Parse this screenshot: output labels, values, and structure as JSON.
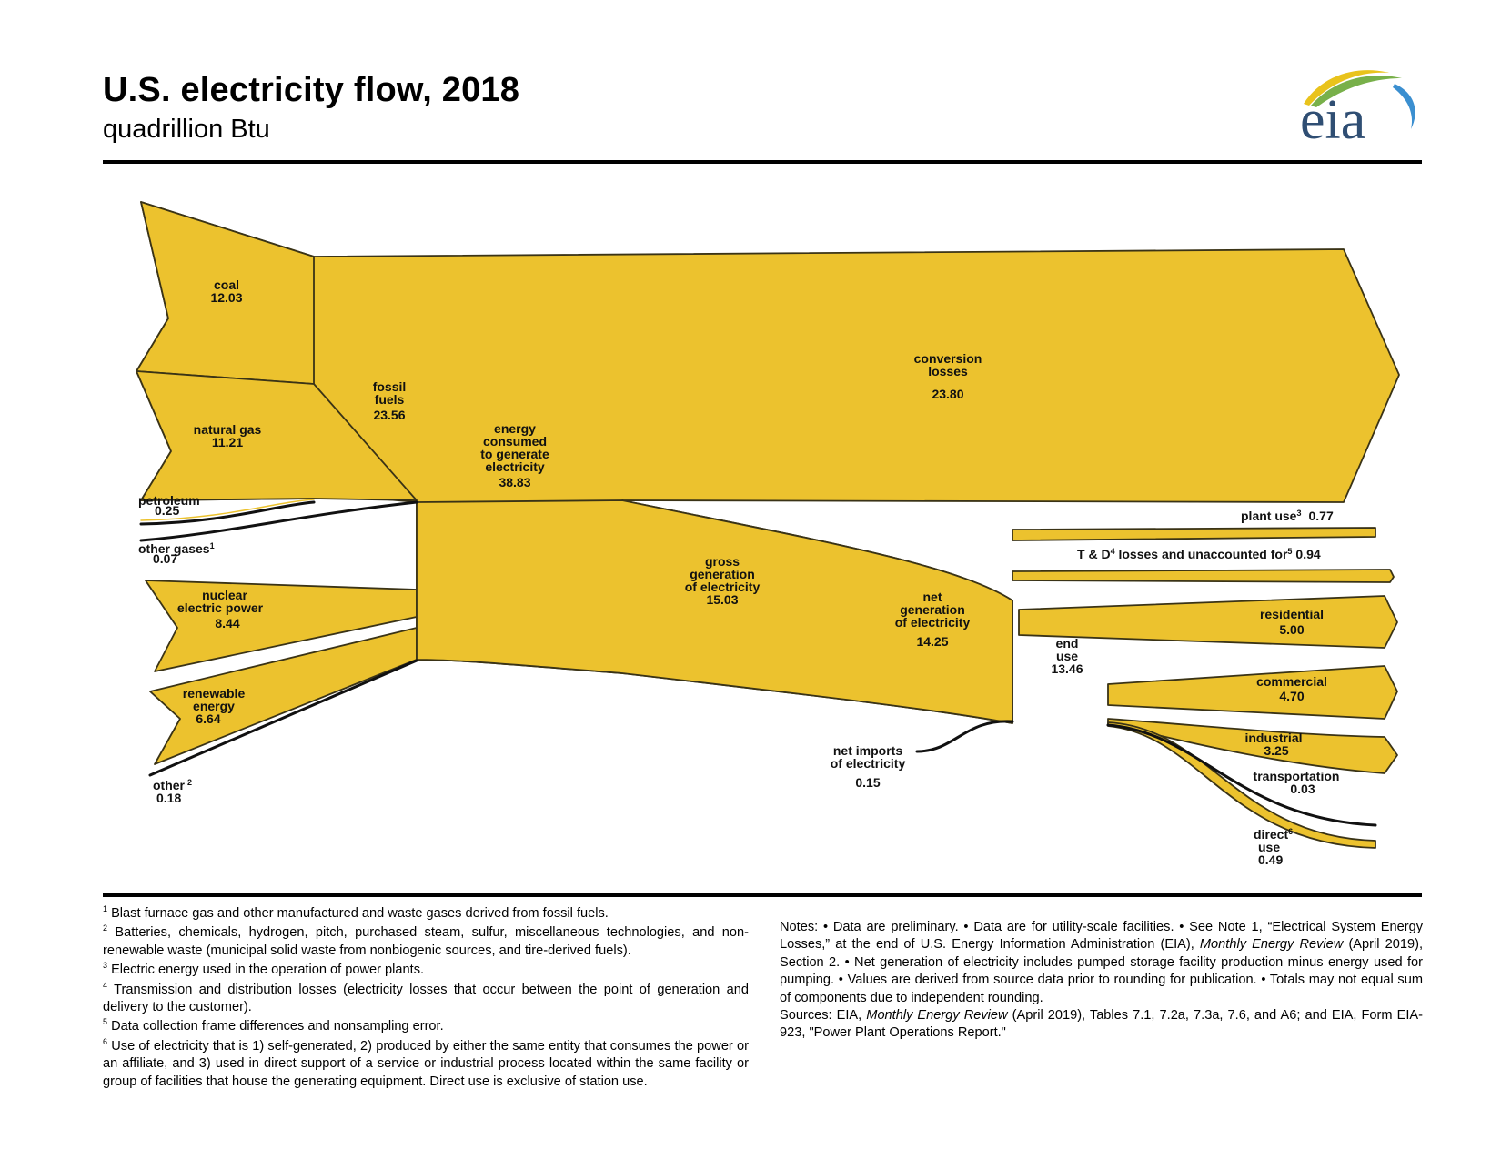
{
  "header": {
    "title": "U.S. electricity flow, 2018",
    "subtitle": "quadrillion Btu",
    "logo_text": "eia"
  },
  "colors": {
    "flow_fill": "#ECC22E",
    "flow_outline": "#3a3316",
    "text": "#111111",
    "logo_text": "#2f4e73",
    "logo_swoosh_green": "#78b04a",
    "logo_swoosh_yellow": "#e9c31c",
    "logo_swoosh_blue": "#3b8fd0"
  },
  "nodes": {
    "coal": {
      "label": "coal",
      "value": "12.03"
    },
    "natural_gas": {
      "label": "natural gas",
      "value": "11.21"
    },
    "petroleum": {
      "label": "petroleum",
      "value": "0.25"
    },
    "other_gases": {
      "label": "other gases",
      "sup": "1",
      "value": "0.07"
    },
    "nuclear": {
      "label_line1": "nuclear",
      "label_line2": "electric power",
      "value": "8.44"
    },
    "renewable": {
      "label_line1": "renewable",
      "label_line2": "energy",
      "value": "6.64"
    },
    "other": {
      "label": "other",
      "sup": "2",
      "value": "0.18"
    },
    "fossil_fuels": {
      "label_line1": "fossil",
      "label_line2": "fuels",
      "value": "23.56"
    },
    "energy_consumed": {
      "label_line1": "energy",
      "label_line2": "consumed",
      "label_line3": "to generate",
      "label_line4": "electricity",
      "value": "38.83"
    },
    "conversion_losses": {
      "label_line1": "conversion",
      "label_line2": "losses",
      "value": "23.80"
    },
    "gross_generation": {
      "label_line1": "gross",
      "label_line2": "generation",
      "label_line3": "of electricity",
      "value": "15.03"
    },
    "plant_use": {
      "label": "plant use",
      "sup": "3",
      "value": "0.77"
    },
    "td_losses": {
      "label_a": "T & D",
      "sup_a": "4",
      "label_b": " losses and unaccounted for",
      "sup_b": "5",
      "value": "0.94"
    },
    "net_generation": {
      "label_line1": "net",
      "label_line2": "generation",
      "label_line3": "of electricity",
      "value": "14.25"
    },
    "end_use": {
      "label_line1": "end",
      "label_line2": "use",
      "value": "13.46"
    },
    "net_imports": {
      "label_line1": "net imports",
      "label_line2": "of electricity",
      "value": "0.15"
    },
    "residential": {
      "label": "residential",
      "value": "5.00"
    },
    "commercial": {
      "label": "commercial",
      "value": "4.70"
    },
    "industrial": {
      "label": "industrial",
      "value": "3.25"
    },
    "transportation": {
      "label": "transportation",
      "value": "0.03"
    },
    "direct_use": {
      "label_line1": "direct",
      "sup": "6",
      "label_line2": "use",
      "value": "0.49"
    }
  },
  "footnotes": [
    {
      "sup": "1",
      "text": "Blast furnace gas and other manufactured and waste gases derived from fossil fuels."
    },
    {
      "sup": "2",
      "text": "Batteries, chemicals, hydrogen, pitch, purchased steam, sulfur, miscellaneous technologies, and non-renewable waste (municipal solid waste from nonbiogenic sources, and tire-derived fuels)."
    },
    {
      "sup": "3",
      "text": "Electric energy used in the operation of power plants."
    },
    {
      "sup": "4",
      "text": "Transmission and distribution losses (electricity losses that occur between the point of generation and delivery to the customer)."
    },
    {
      "sup": "5",
      "text": "Data collection frame differences and nonsampling error."
    },
    {
      "sup": "6",
      "text": "Use of electricity that is 1) self-generated, 2) produced by either the same entity that consumes the power or an affiliate, and 3) used in direct support of a service or industrial process located within the same facility or group of facilities that house the generating equipment. Direct use is exclusive of station use."
    }
  ],
  "notes": {
    "a": "Notes:  •  Data are preliminary.  •  Data are for utility-scale facilities.  •  See Note 1, “Electrical System Energy Losses,” at the end of U.S. Energy Information Administration (EIA), ",
    "a_em": "Monthly Energy Review",
    "b": " (April 2019), Section 2.  •  Net generation of electricity includes pumped storage facility production minus energy used for pumping.  •  Values are derived from source data prior to rounding for publication.  •  Totals may not equal sum of components due to independent rounding."
  },
  "sources": {
    "a": "Sources: EIA, ",
    "a_em": "Monthly Energy Review",
    "b": " (April 2019), Tables 7.1, 7.2a, 7.3a, 7.6, and A6; and EIA, Form EIA-923, \"Power Plant Operations Report.\""
  }
}
